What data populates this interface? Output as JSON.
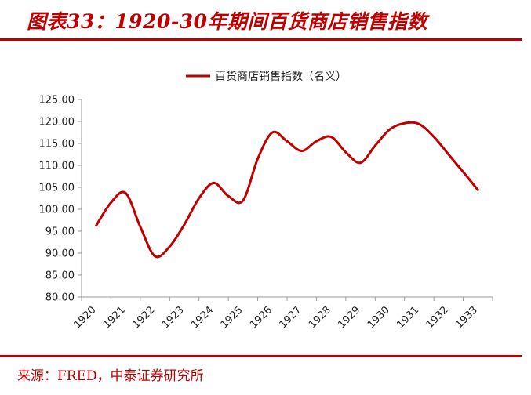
{
  "figure_title": "图表33：1920-30年期间百货商店销售指数",
  "source": "来源：FRED，中泰证券研究所",
  "colors": {
    "accent": "#c00000",
    "line": "#c00000",
    "axis": "#999999"
  },
  "chart_data": {
    "type": "line",
    "title": "",
    "xlabel": "",
    "ylabel": "",
    "legend": "top-center",
    "grid": false,
    "ylim": [
      80,
      125
    ],
    "yticks": [
      "80.00",
      "85.00",
      "90.00",
      "95.00",
      "100.00",
      "105.00",
      "110.00",
      "115.00",
      "120.00",
      "125.00"
    ],
    "categories": [
      "1920",
      "1921",
      "1922",
      "1923",
      "1924",
      "1925",
      "1926",
      "1927",
      "1928",
      "1929",
      "1930",
      "1931",
      "1932",
      "1933"
    ],
    "series": [
      {
        "name": "百货商店销售指数（名义）",
        "x": [
          1920.0,
          1920.5,
          1921.0,
          1921.5,
          1922.0,
          1922.5,
          1923.0,
          1923.5,
          1924.0,
          1924.5,
          1925.0,
          1925.5,
          1926.0,
          1926.5,
          1927.0,
          1927.5,
          1928.0,
          1928.5,
          1929.0,
          1929.5,
          1930.0,
          1930.5,
          1931.0,
          1931.5,
          1932.0,
          1932.5,
          1933.0
        ],
        "values": [
          96.3,
          101.5,
          103.7,
          96.0,
          89.3,
          91.5,
          96.5,
          102.5,
          106.0,
          103.0,
          102.0,
          111.5,
          117.5,
          115.5,
          113.3,
          115.5,
          116.5,
          113.0,
          110.6,
          114.5,
          118.2,
          119.6,
          119.4,
          116.5,
          112.5,
          108.5,
          104.4
        ]
      }
    ]
  }
}
